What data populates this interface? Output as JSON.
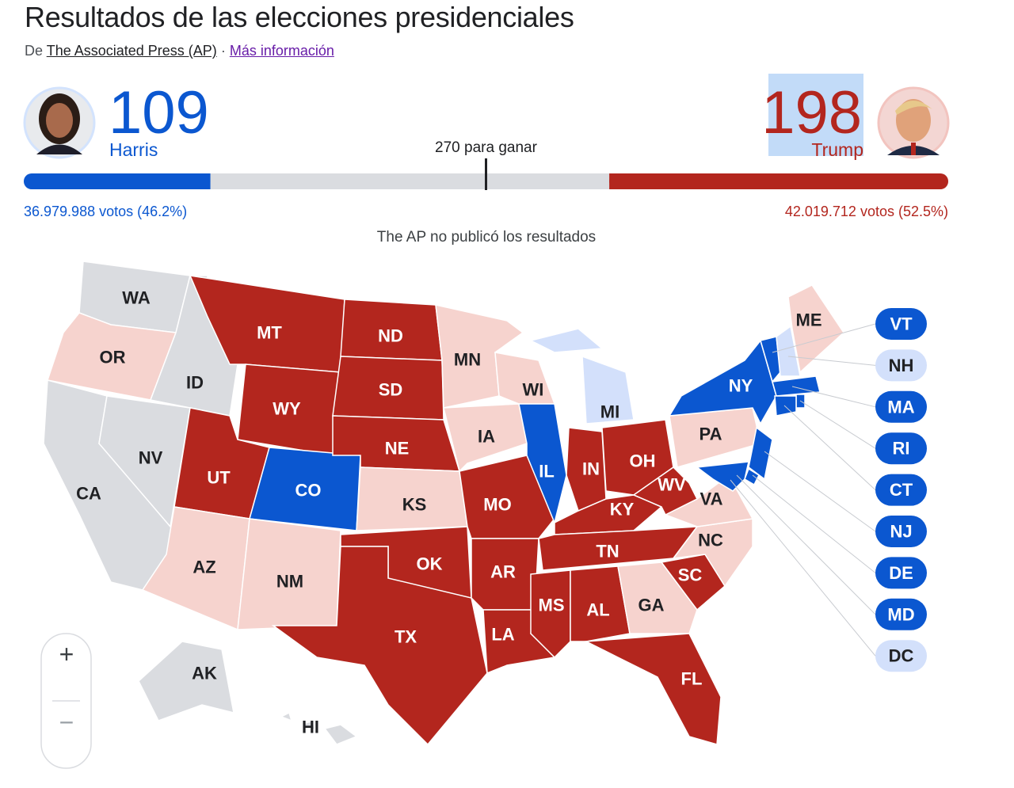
{
  "header": {
    "title": "Resultados de las elecciones presidenciales",
    "source_prefix": "De",
    "source": "The Associated Press (AP)",
    "separator": "·",
    "more_link": "Más información"
  },
  "candidates": [
    {
      "name": "Harris",
      "electoral_votes": 109,
      "votes": "36.979.988 votos (46.2%)",
      "color": "#0b57d0"
    },
    {
      "name": "Trump",
      "electoral_votes": 198,
      "votes": "42.019.712 votos (52.5%)",
      "color": "#b3261e"
    }
  ],
  "win_threshold": {
    "value": 270,
    "label": "270 para ganar"
  },
  "note": "The AP no publicó los resultados",
  "map": {
    "states": [
      {
        "label": "WA",
        "color": "#dadce0"
      },
      {
        "label": "OR",
        "color": "#f6d3ce"
      },
      {
        "label": "CA",
        "color": "#dadce0"
      },
      {
        "label": "NV",
        "color": "#dadce0"
      },
      {
        "label": "ID",
        "color": "#dadce0"
      },
      {
        "label": "MT",
        "color": "#b3261e"
      },
      {
        "label": "WY",
        "color": "#b3261e"
      },
      {
        "label": "UT",
        "color": "#b3261e"
      },
      {
        "label": "CO",
        "color": "#0b57d0"
      },
      {
        "label": "AZ",
        "color": "#f6d3ce"
      },
      {
        "label": "NM",
        "color": "#f6d3ce"
      },
      {
        "label": "ND",
        "color": "#b3261e"
      },
      {
        "label": "SD",
        "color": "#b3261e"
      },
      {
        "label": "NE",
        "color": "#b3261e"
      },
      {
        "label": "KS",
        "color": "#f6d3ce"
      },
      {
        "label": "OK",
        "color": "#b3261e"
      },
      {
        "label": "TX",
        "color": "#b3261e"
      },
      {
        "label": "MN",
        "color": "#f6d3ce"
      },
      {
        "label": "IA",
        "color": "#f6d3ce"
      },
      {
        "label": "MO",
        "color": "#b3261e"
      },
      {
        "label": "AR",
        "color": "#b3261e"
      },
      {
        "label": "LA",
        "color": "#b3261e"
      },
      {
        "label": "WI",
        "color": "#f6d3ce"
      },
      {
        "label": "IL",
        "color": "#0b57d0"
      },
      {
        "label": "MI",
        "color": "#d3e0fb"
      },
      {
        "label": "IN",
        "color": "#b3261e"
      },
      {
        "label": "OH",
        "color": "#b3261e"
      },
      {
        "label": "KY",
        "color": "#b3261e"
      },
      {
        "label": "TN",
        "color": "#b3261e"
      },
      {
        "label": "MS",
        "color": "#b3261e"
      },
      {
        "label": "AL",
        "color": "#b3261e"
      },
      {
        "label": "GA",
        "color": "#f6d3ce"
      },
      {
        "label": "FL",
        "color": "#b3261e"
      },
      {
        "label": "SC",
        "color": "#b3261e"
      },
      {
        "label": "NC",
        "color": "#f6d3ce"
      },
      {
        "label": "VA",
        "color": "#f6d3ce"
      },
      {
        "label": "WV",
        "color": "#b3261e"
      },
      {
        "label": "PA",
        "color": "#f6d3ce"
      },
      {
        "label": "NY",
        "color": "#0b57d0"
      },
      {
        "label": "ME",
        "color": "#f6d3ce"
      },
      {
        "label": "AK",
        "color": "#dadce0"
      },
      {
        "label": "HI",
        "color": "#dadce0"
      }
    ],
    "small_states": [
      {
        "label": "VT",
        "color": "#0b57d0"
      },
      {
        "label": "NH",
        "color": "#d3e0fb"
      },
      {
        "label": "MA",
        "color": "#0b57d0"
      },
      {
        "label": "RI",
        "color": "#0b57d0"
      },
      {
        "label": "CT",
        "color": "#0b57d0"
      },
      {
        "label": "NJ",
        "color": "#0b57d0"
      },
      {
        "label": "DE",
        "color": "#0b57d0"
      },
      {
        "label": "MD",
        "color": "#0b57d0"
      },
      {
        "label": "DC",
        "color": "#d3e0fb"
      }
    ]
  },
  "zoom": {
    "in": "+",
    "out": "−"
  }
}
